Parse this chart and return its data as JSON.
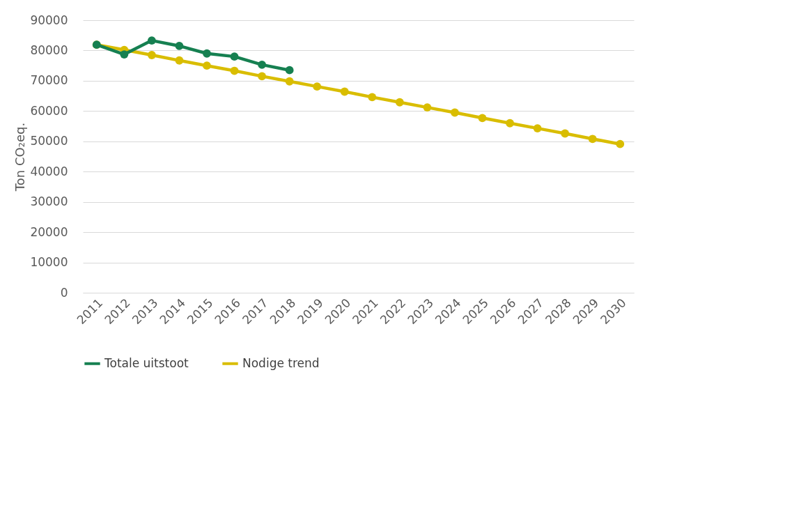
{
  "chart_data": {
    "type": "line",
    "ylabel": "Ton CO₂eq.",
    "categories": [
      "2011",
      "2012",
      "2013",
      "2014",
      "2015",
      "2016",
      "2017",
      "2018",
      "2019",
      "2020",
      "2021",
      "2022",
      "2023",
      "2024",
      "2025",
      "2026",
      "2027",
      "2028",
      "2029",
      "2030"
    ],
    "series": [
      {
        "name": "Totale uitstoot",
        "color": "#168051",
        "values": [
          81900,
          78700,
          83300,
          81500,
          79000,
          78000,
          75300,
          73500,
          null,
          null,
          null,
          null,
          null,
          null,
          null,
          null,
          null,
          null,
          null,
          null
        ]
      },
      {
        "name": "Nodige trend",
        "color": "#d9bd00",
        "values": [
          81900,
          80200,
          78500,
          76700,
          75000,
          73300,
          71500,
          69800,
          68100,
          66400,
          64600,
          62900,
          61200,
          59500,
          57700,
          56000,
          54300,
          52600,
          50800,
          49100
        ]
      }
    ],
    "ylim": [
      0,
      90000
    ],
    "yticks": [
      0,
      10000,
      20000,
      30000,
      40000,
      50000,
      60000,
      70000,
      80000,
      90000
    ],
    "grid": "y",
    "legend": "bottom",
    "marker": "circle",
    "line_style": "solid"
  }
}
